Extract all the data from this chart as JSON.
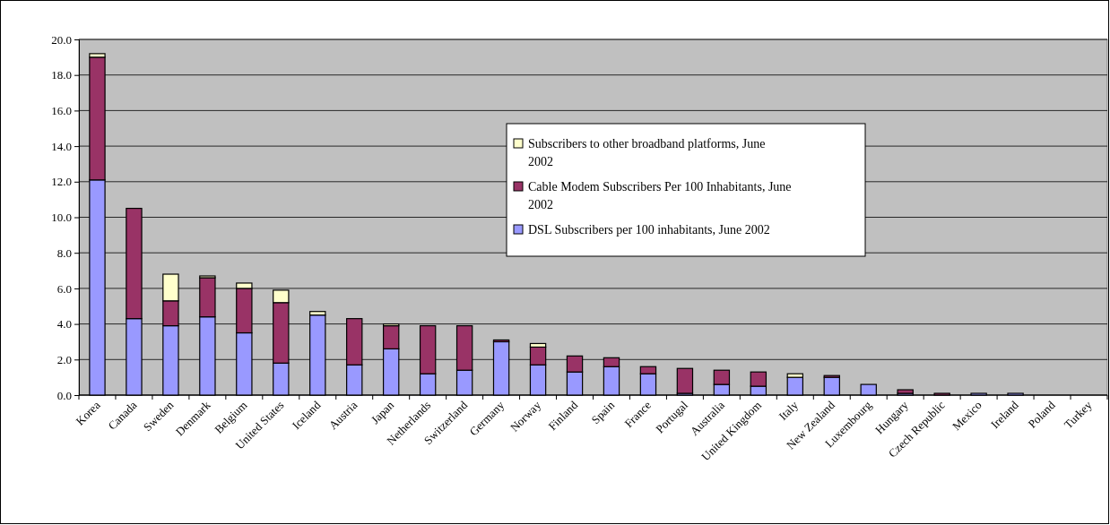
{
  "chart_data": {
    "type": "bar",
    "stacked": true,
    "grid": "y",
    "legend": "top",
    "categories": [
      "Korea",
      "Canada",
      "Sweden",
      "Denmark",
      "Belgium",
      "United States",
      "Iceland",
      "Austria",
      "Japan",
      "Netherlands",
      "Switzerland",
      "Germany",
      "Norway",
      "Finland",
      "Spain",
      "France",
      "Portugal",
      "Australia",
      "United Kingdom",
      "Italy",
      "New Zealand",
      "Luxembourg",
      "Hungary",
      "Czech Republic",
      "Mexico",
      "Ireland",
      "Poland",
      "Turkey"
    ],
    "ylim": [
      0,
      20
    ],
    "yticks": [
      {
        "value": 0,
        "label": "0.0"
      },
      {
        "value": 2,
        "label": "2.0"
      },
      {
        "value": 4,
        "label": "4.0"
      },
      {
        "value": 6,
        "label": "6.0"
      },
      {
        "value": 8,
        "label": "8.0"
      },
      {
        "value": 10,
        "label": "10.0"
      },
      {
        "value": 12,
        "label": "12.0"
      },
      {
        "value": 14,
        "label": "14.0"
      },
      {
        "value": 16,
        "label": "16.0"
      },
      {
        "value": 18,
        "label": "18.0"
      },
      {
        "value": 20,
        "label": "20.0"
      }
    ],
    "series": [
      {
        "name": "DSL Subscribers per 100 inhabitants, June 2002",
        "color": "#9999ff",
        "values": [
          12.1,
          4.3,
          3.9,
          4.4,
          3.5,
          1.8,
          4.5,
          1.7,
          2.6,
          1.2,
          1.4,
          3.0,
          1.7,
          1.3,
          1.6,
          1.2,
          0.1,
          0.6,
          0.5,
          1.0,
          1.0,
          0.6,
          0.1,
          0,
          0.1,
          0.1,
          0,
          0
        ]
      },
      {
        "name": "Cable Modem Subscribers Per 100 Inhabitants, June 2002",
        "color": "#993366",
        "values": [
          6.9,
          6.2,
          1.4,
          2.2,
          2.5,
          3.4,
          0,
          2.6,
          1.3,
          2.7,
          2.5,
          0.1,
          1.0,
          0.9,
          0.5,
          0.4,
          1.4,
          0.8,
          0.8,
          0,
          0.1,
          0,
          0.2,
          0.1,
          0,
          0,
          0,
          0
        ]
      },
      {
        "name": "Subscribers to other broadband platforms, June 2002",
        "color": "#ffffcc",
        "values": [
          0.2,
          0,
          1.5,
          0.1,
          0.3,
          0.7,
          0.2,
          0,
          0.1,
          0,
          0,
          0,
          0.2,
          0,
          0,
          0,
          0,
          0,
          0,
          0.2,
          0,
          0,
          0,
          0,
          0,
          0,
          0,
          0
        ]
      }
    ]
  }
}
